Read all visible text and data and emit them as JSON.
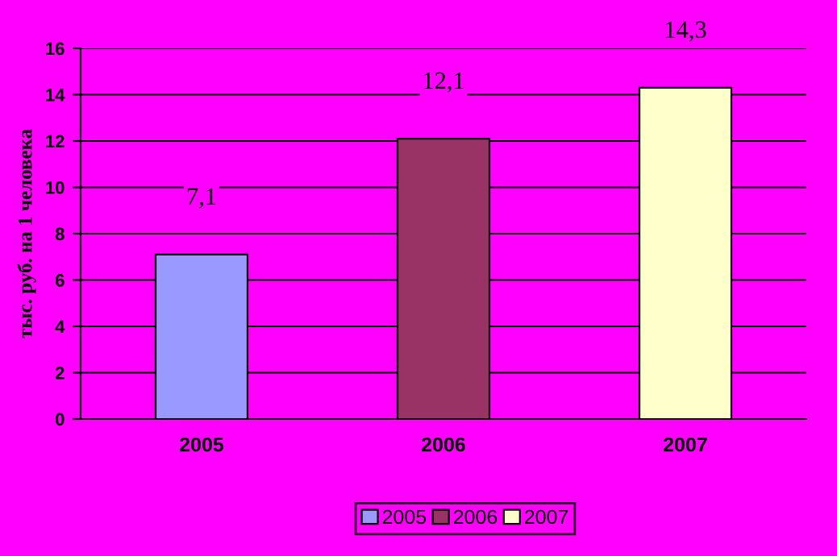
{
  "chart_data": {
    "type": "bar",
    "ylabel": "тыс. руб. на 1 человека",
    "categories": [
      "2005",
      "2006",
      "2007"
    ],
    "series": [
      {
        "name": "2005",
        "color": "#9999ff",
        "values": [
          7.1,
          null,
          null
        ],
        "value_labels": [
          "7,1",
          null,
          null
        ]
      },
      {
        "name": "2006",
        "color": "#993366",
        "values": [
          null,
          12.1,
          null
        ],
        "value_labels": [
          null,
          "12,1",
          null
        ]
      },
      {
        "name": "2007",
        "color": "#ffffcc",
        "values": [
          null,
          null,
          14.3
        ],
        "value_labels": [
          null,
          null,
          "14,3"
        ]
      }
    ],
    "ylim": [
      0,
      16
    ],
    "yticks": [
      0,
      2,
      4,
      6,
      8,
      10,
      12,
      14,
      16
    ],
    "grid": "y",
    "legend": "bottom"
  }
}
